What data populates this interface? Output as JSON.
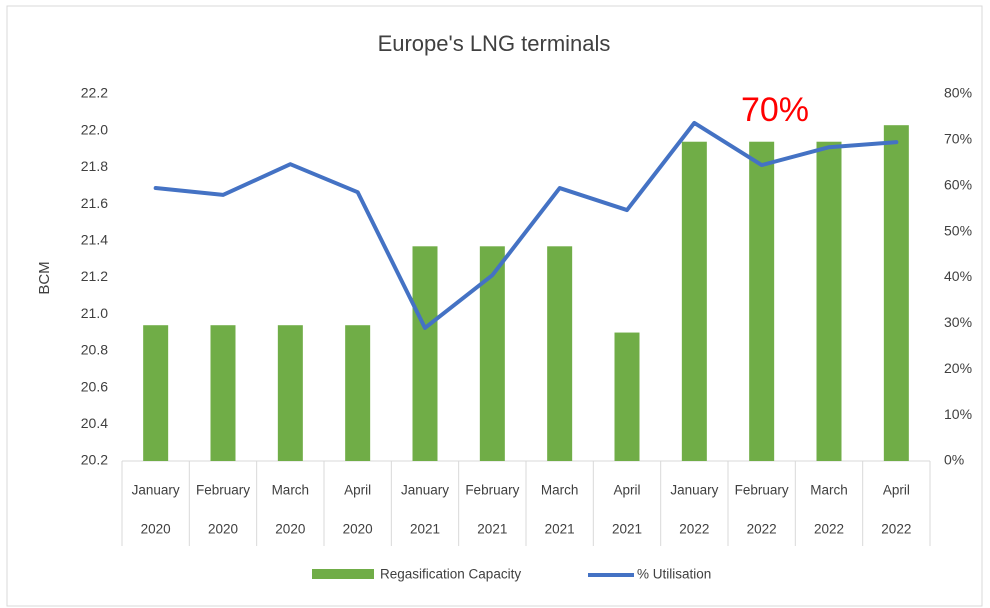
{
  "chart_data": {
    "type": "bar_line",
    "title": "Europe's LNG terminals",
    "y_label": "BCM",
    "annotation": "70%",
    "annotation_color": "#ff0000",
    "categories": [
      "January",
      "February",
      "March",
      "April",
      "January",
      "February",
      "March",
      "April",
      "January",
      "February",
      "March",
      "April"
    ],
    "category_years": [
      "2020",
      "2020",
      "2020",
      "2020",
      "2021",
      "2021",
      "2021",
      "2021",
      "2022",
      "2022",
      "2022",
      "2022"
    ],
    "series": [
      {
        "name": "Regasification Capacity",
        "color": "#70ad47",
        "type": "bar",
        "values": [
          20.94,
          20.94,
          20.94,
          20.94,
          21.37,
          21.37,
          21.37,
          20.9,
          21.94,
          21.94,
          21.94,
          22.03
        ]
      },
      {
        "name": "% Utilisation",
        "color": "#4472c4",
        "type": "line",
        "axis": "y2",
        "values": [
          59.5,
          58,
          64.7,
          58.6,
          29,
          40.5,
          59.5,
          54.7,
          73.7,
          64.5,
          68.4,
          69.5
        ]
      }
    ],
    "ylim": [
      20.2,
      22.2
    ],
    "yticks": [
      20.2,
      20.4,
      20.6,
      20.8,
      {
        "value": 21,
        "label": "21.0"
      },
      21.2,
      21.4,
      21.6,
      21.8,
      {
        "value": 22,
        "label": "22.0"
      },
      22.2
    ],
    "y2lim": [
      0,
      80
    ],
    "y2ticks": [
      {
        "value": 0,
        "label": "0%"
      },
      {
        "value": 10,
        "label": "10%"
      },
      {
        "value": 20,
        "label": "20%"
      },
      {
        "value": 30,
        "label": "30%"
      },
      {
        "value": 40,
        "label": "40%"
      },
      {
        "value": 50,
        "label": "50%"
      },
      {
        "value": 60,
        "label": "60%"
      },
      {
        "value": 70,
        "label": "70%"
      },
      {
        "value": 80,
        "label": "80%"
      }
    ]
  }
}
